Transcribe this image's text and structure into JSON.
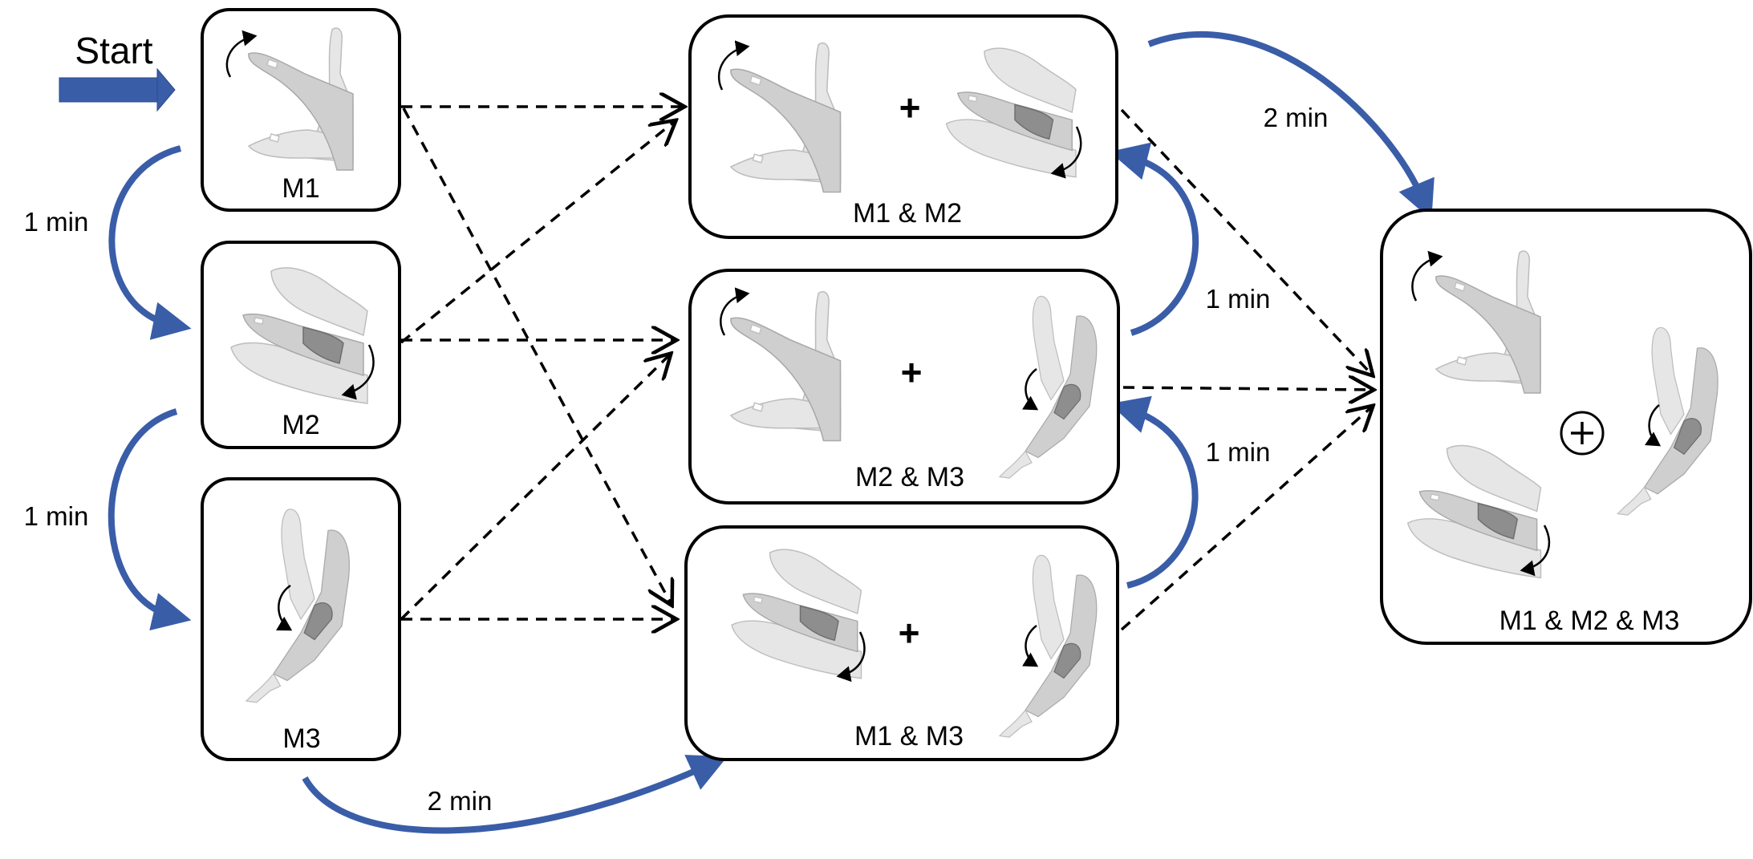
{
  "start": {
    "label": "Start"
  },
  "nodes": {
    "m1": "M1",
    "m2": "M2",
    "m3": "M3",
    "m1m2": "M1 & M2",
    "m2m3": "M2 & M3",
    "m1m3": "M1 & M3",
    "m1m2m3": "M1 & M2 & M3"
  },
  "transitions": {
    "m1_to_m2": "1 min",
    "m2_to_m3": "1 min",
    "m3_to_m1m3": "2 min",
    "m1m3_to_m2m3": "1 min",
    "m2m3_to_m1m2": "1 min",
    "m1m2_to_m1m2m3": "2 min"
  },
  "plus_symbol": "+",
  "colors": {
    "sequence_arrow": "#3a5da8",
    "box_border": "#000000",
    "dashed_arrow": "#000000"
  },
  "icons": [
    "wrist-flexion-hand-icon",
    "forearm-rotation-hand-icon",
    "elbow-flexion-arm-icon",
    "rotation-arrow-icon",
    "circled-plus-icon"
  ]
}
